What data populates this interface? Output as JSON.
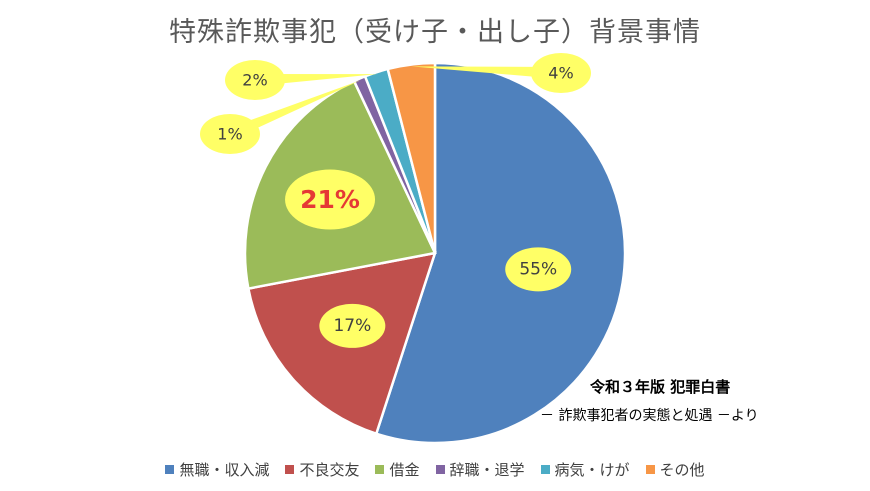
{
  "title": "特殊詐欺事犯（受け子・出し子）背景事情",
  "source": {
    "line1": "令和３年版 犯罪白書",
    "line2": "－ 詐欺事犯者の実態と処遇 －より"
  },
  "chart_data": {
    "type": "pie",
    "title": "特殊詐欺事犯（受け子・出し子）背景事情",
    "start_angle_deg": 0,
    "direction": "clockwise",
    "slices": [
      {
        "name": "無職・収入減",
        "value": 55,
        "label": "55%",
        "color": "#4F81BD"
      },
      {
        "name": "不良交友",
        "value": 17,
        "label": "17%",
        "color": "#C0504D"
      },
      {
        "name": "借金",
        "value": 21,
        "label": "21%",
        "color": "#9BBB59"
      },
      {
        "name": "辞職・退学",
        "value": 1,
        "label": "1%",
        "color": "#8064A2"
      },
      {
        "name": "病気・けが",
        "value": 2,
        "label": "2%",
        "color": "#4BACC6"
      },
      {
        "name": "その他",
        "value": 4,
        "label": "4%",
        "color": "#F79646"
      }
    ],
    "label_style": {
      "bubble_color": "#FFFF66",
      "highlight_label_color": "#E53935",
      "highlight_slice": "借金"
    },
    "legend_position": "bottom"
  }
}
